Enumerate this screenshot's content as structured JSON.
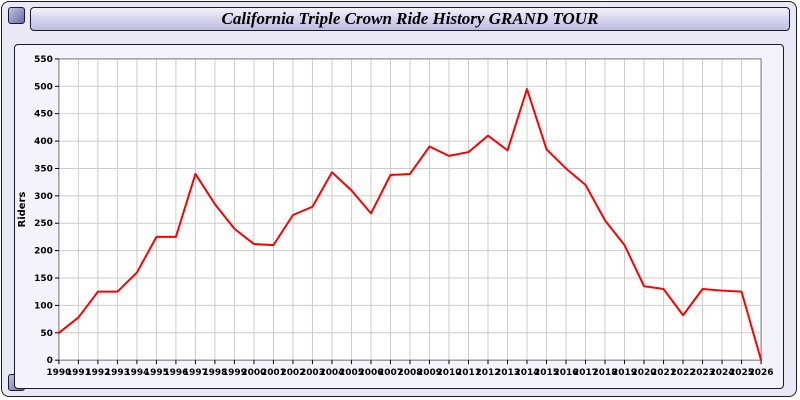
{
  "window": {
    "title": "California Triple Crown Ride History GRAND TOUR"
  },
  "colors": {
    "line": "#ff0000",
    "grid": "#cccccc",
    "plot_background": "#ffffff",
    "panel_background": "#f3f3fb",
    "page_background": "#e9e9f6",
    "titlebar_accent": "#bdbde0"
  },
  "chart_data": {
    "type": "line",
    "title": "California Triple Crown Ride History GRAND TOUR",
    "xlabel": "",
    "ylabel": "Riders",
    "ylim": [
      0,
      550
    ],
    "ytick_step": 50,
    "grid": true,
    "legend": "none",
    "line_color": "#ff0000",
    "plot_bg": "#ffffff",
    "x": [
      1990,
      1991,
      1992,
      1993,
      1994,
      1995,
      1996,
      1997,
      1998,
      1999,
      2000,
      2001,
      2002,
      2003,
      2004,
      2005,
      2006,
      2007,
      2008,
      2009,
      2010,
      2011,
      2012,
      2013,
      2014,
      2015,
      2016,
      2017,
      2018,
      2019,
      2020,
      2021,
      2022,
      2023,
      2024,
      2025,
      2026
    ],
    "series": [
      {
        "name": "Riders",
        "values": [
          50,
          78,
          125,
          125,
          160,
          225,
          225,
          340,
          285,
          240,
          212,
          210,
          265,
          280,
          343,
          310,
          268,
          338,
          340,
          390,
          373,
          380,
          410,
          383,
          495,
          385,
          350,
          320,
          255,
          210,
          135,
          130,
          82,
          130,
          127,
          125,
          0
        ]
      }
    ]
  }
}
